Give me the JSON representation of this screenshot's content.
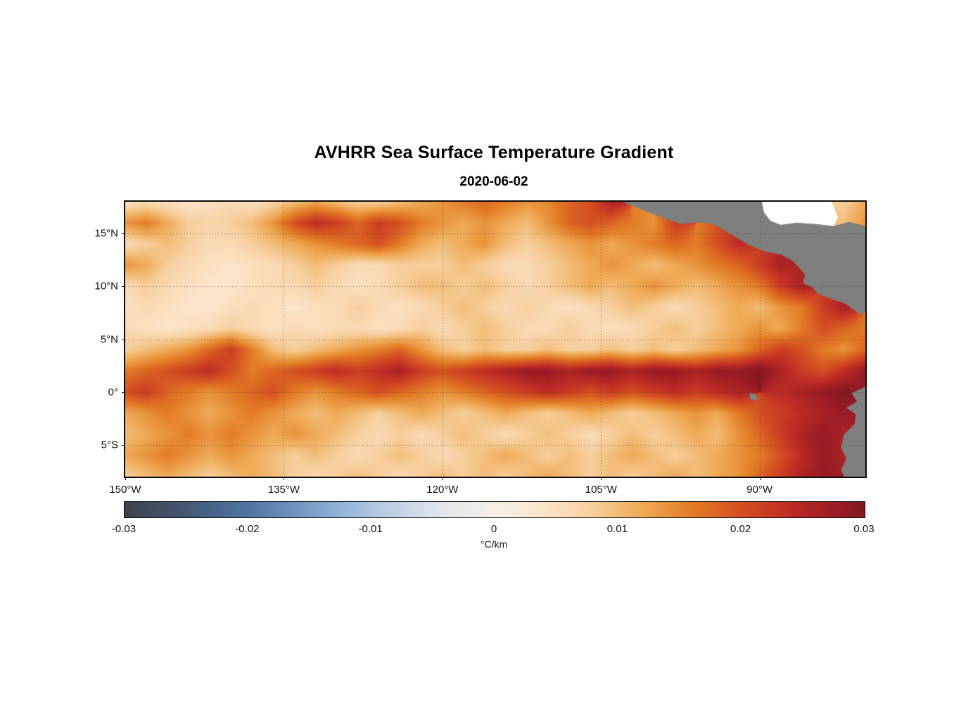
{
  "chart_data": {
    "type": "heatmap",
    "title": "AVHRR Sea Surface Temperature Gradient",
    "date": "2020-06-02",
    "units": "°C/km",
    "lon_range": [
      -150,
      -80
    ],
    "lat_range": [
      -8,
      18
    ],
    "grid_on": true,
    "gridline_style": "dotted",
    "x_ticks": [
      {
        "value": -150,
        "label": "150°W",
        "pos_pct": 0
      },
      {
        "value": -135,
        "label": "135°W",
        "pos_pct": 21.43
      },
      {
        "value": -120,
        "label": "120°W",
        "pos_pct": 42.86
      },
      {
        "value": -105,
        "label": "105°W",
        "pos_pct": 64.29
      },
      {
        "value": -90,
        "label": "90°W",
        "pos_pct": 85.71
      }
    ],
    "y_ticks": [
      {
        "value": 15,
        "label": "15°N",
        "pos_pct": 11.54
      },
      {
        "value": 10,
        "label": "10°N",
        "pos_pct": 30.77
      },
      {
        "value": 5,
        "label": "5°N",
        "pos_pct": 50.0
      },
      {
        "value": 0,
        "label": "0°",
        "pos_pct": 69.23
      },
      {
        "value": -5,
        "label": "5°S",
        "pos_pct": 88.46
      }
    ],
    "gridlines": {
      "lats": [
        15,
        10,
        5,
        0,
        -5
      ],
      "lons": [
        -135,
        -120,
        -105,
        -90
      ]
    },
    "colorbar": {
      "min": -0.03,
      "max": 0.03,
      "ticks": [
        "-0.03",
        "-0.02",
        "-0.01",
        "0",
        "0.01",
        "0.02",
        "0.03"
      ],
      "tick_values": [
        -0.03,
        -0.02,
        -0.01,
        0,
        0.01,
        0.02,
        0.03
      ],
      "tick_pos_pct": [
        0,
        16.67,
        33.33,
        50,
        66.67,
        83.33,
        100
      ],
      "label": "°C/km"
    },
    "colormap": [
      [
        -0.03,
        "#3d434e"
      ],
      [
        -0.026,
        "#42526b"
      ],
      [
        -0.02,
        "#4e74a4"
      ],
      [
        -0.014,
        "#84a7cf"
      ],
      [
        -0.01,
        "#aec6e0"
      ],
      [
        -0.005,
        "#dde4ed"
      ],
      [
        0.0,
        "#f6efe6"
      ],
      [
        0.004,
        "#fbe5cb"
      ],
      [
        0.008,
        "#f7cf9d"
      ],
      [
        0.012,
        "#efaa56"
      ],
      [
        0.016,
        "#e37c25"
      ],
      [
        0.02,
        "#d44f22"
      ],
      [
        0.024,
        "#bd2c24"
      ],
      [
        0.028,
        "#981a25"
      ],
      [
        0.03,
        "#841821"
      ]
    ],
    "land_color": "#7f7f7f",
    "nodata_color": "#ffffff",
    "grid": {
      "comment": "SST gradient magnitude estimated from the image on a 2-degree grid; values x 0.001 degC/km; -1 = land, -2 = no data (white)",
      "lon_start": -150,
      "lon_step": 2,
      "ncols": 36,
      "lat_start": 18,
      "lat_step": -2,
      "nrows": 14,
      "values_scale": 0.001,
      "land_value": -1,
      "nodata_value": -2,
      "values": [
        [
          5,
          6,
          5,
          4,
          5,
          6,
          5,
          7,
          10,
          12,
          10,
          8,
          8,
          10,
          12,
          14,
          16,
          18,
          16,
          14,
          15,
          18,
          20,
          26,
          -1,
          -1,
          -1,
          -1,
          -1,
          -1,
          -2,
          -2,
          -2,
          -2,
          8,
          12
        ],
        [
          14,
          16,
          12,
          8,
          7,
          8,
          10,
          14,
          20,
          24,
          22,
          18,
          22,
          20,
          16,
          14,
          12,
          14,
          12,
          10,
          14,
          18,
          20,
          18,
          16,
          14,
          22,
          -1,
          -1,
          -1,
          -1,
          -2,
          -2,
          -2,
          10,
          14
        ],
        [
          6,
          8,
          10,
          8,
          6,
          6,
          8,
          10,
          12,
          14,
          16,
          18,
          20,
          16,
          12,
          10,
          12,
          14,
          10,
          8,
          10,
          12,
          14,
          12,
          14,
          16,
          18,
          16,
          20,
          24,
          -1,
          -1,
          -1,
          -1,
          -1,
          -1
        ],
        [
          14,
          12,
          8,
          6,
          5,
          4,
          5,
          6,
          8,
          10,
          8,
          6,
          6,
          8,
          8,
          8,
          10,
          8,
          6,
          6,
          8,
          10,
          12,
          14,
          12,
          10,
          12,
          14,
          16,
          18,
          22,
          26,
          -1,
          -1,
          -1,
          -1
        ],
        [
          6,
          8,
          6,
          5,
          4,
          4,
          5,
          6,
          6,
          8,
          6,
          5,
          6,
          8,
          10,
          10,
          8,
          10,
          8,
          6,
          8,
          10,
          12,
          10,
          12,
          14,
          12,
          10,
          12,
          14,
          16,
          22,
          26,
          -1,
          -1,
          -1
        ],
        [
          5,
          6,
          5,
          4,
          4,
          5,
          6,
          5,
          4,
          5,
          6,
          8,
          6,
          5,
          6,
          8,
          10,
          8,
          6,
          8,
          6,
          5,
          6,
          8,
          10,
          8,
          6,
          8,
          10,
          12,
          10,
          14,
          16,
          22,
          26,
          -1
        ],
        [
          6,
          5,
          4,
          5,
          6,
          8,
          6,
          5,
          6,
          5,
          6,
          6,
          5,
          6,
          8,
          6,
          8,
          10,
          8,
          6,
          6,
          8,
          6,
          5,
          6,
          8,
          10,
          8,
          10,
          12,
          14,
          12,
          16,
          20,
          18,
          16
        ],
        [
          8,
          10,
          12,
          14,
          18,
          22,
          16,
          10,
          8,
          10,
          12,
          14,
          16,
          18,
          14,
          10,
          8,
          10,
          8,
          8,
          10,
          8,
          8,
          10,
          8,
          10,
          8,
          10,
          12,
          14,
          18,
          22,
          20,
          16,
          14,
          18
        ],
        [
          16,
          18,
          20,
          22,
          24,
          20,
          16,
          18,
          20,
          22,
          24,
          22,
          24,
          26,
          22,
          20,
          22,
          24,
          26,
          28,
          28,
          26,
          28,
          28,
          26,
          28,
          28,
          26,
          28,
          28,
          30,
          26,
          22,
          20,
          24,
          28
        ],
        [
          20,
          22,
          18,
          16,
          14,
          16,
          18,
          20,
          16,
          14,
          16,
          18,
          20,
          18,
          16,
          14,
          16,
          18,
          20,
          22,
          24,
          22,
          20,
          22,
          20,
          22,
          24,
          22,
          24,
          26,
          -1,
          24,
          26,
          28,
          30,
          -1
        ],
        [
          12,
          14,
          16,
          14,
          12,
          14,
          16,
          14,
          12,
          10,
          12,
          10,
          8,
          10,
          12,
          10,
          8,
          10,
          12,
          10,
          8,
          10,
          12,
          10,
          8,
          10,
          12,
          14,
          12,
          16,
          20,
          22,
          24,
          26,
          28,
          -1
        ],
        [
          10,
          12,
          14,
          16,
          14,
          16,
          14,
          12,
          14,
          12,
          10,
          8,
          6,
          8,
          6,
          8,
          10,
          8,
          6,
          8,
          10,
          8,
          6,
          8,
          10,
          8,
          10,
          12,
          10,
          14,
          18,
          22,
          26,
          28,
          26,
          -1
        ],
        [
          12,
          14,
          16,
          14,
          12,
          14,
          12,
          10,
          8,
          10,
          8,
          6,
          8,
          10,
          8,
          6,
          8,
          10,
          12,
          10,
          8,
          10,
          8,
          10,
          12,
          10,
          8,
          10,
          12,
          14,
          16,
          20,
          24,
          28,
          26,
          -1
        ],
        [
          8,
          10,
          12,
          10,
          8,
          10,
          12,
          10,
          8,
          6,
          8,
          10,
          8,
          6,
          8,
          10,
          8,
          10,
          8,
          10,
          12,
          10,
          8,
          10,
          8,
          10,
          12,
          10,
          12,
          14,
          18,
          22,
          26,
          28,
          -1,
          -1
        ]
      ]
    },
    "land_polygons": [
      {
        "name": "central-america",
        "points": [
          [
            -103,
            18
          ],
          [
            -101,
            17.2
          ],
          [
            -99.5,
            16.6
          ],
          [
            -97.5,
            15.9
          ],
          [
            -95.5,
            16.1
          ],
          [
            -94,
            15.7
          ],
          [
            -92.5,
            14.8
          ],
          [
            -91,
            13.9
          ],
          [
            -89.5,
            13.3
          ],
          [
            -88,
            13
          ],
          [
            -87,
            12.5
          ],
          [
            -86.3,
            11.8
          ],
          [
            -85.7,
            11.1
          ],
          [
            -85.9,
            10.3
          ],
          [
            -85,
            9.9
          ],
          [
            -84.5,
            9.3
          ],
          [
            -83.5,
            8.9
          ],
          [
            -82.6,
            8.6
          ],
          [
            -81.8,
            8.3
          ],
          [
            -81,
            7.7
          ],
          [
            -80.4,
            7.3
          ],
          [
            -80,
            7.6
          ],
          [
            -80,
            15.7
          ],
          [
            -81.5,
            16.1
          ],
          [
            -83,
            15.7
          ],
          [
            -85,
            15.9
          ],
          [
            -86.5,
            16
          ],
          [
            -88,
            15.8
          ],
          [
            -89,
            16.2
          ],
          [
            -89.6,
            17
          ],
          [
            -89.8,
            18
          ]
        ]
      },
      {
        "name": "south-america",
        "points": [
          [
            -80,
            0.5
          ],
          [
            -81.3,
            -0.1
          ],
          [
            -80.8,
            -0.9
          ],
          [
            -81.8,
            -1.5
          ],
          [
            -80.9,
            -2.1
          ],
          [
            -81,
            -3
          ],
          [
            -82,
            -4
          ],
          [
            -82.3,
            -5.2
          ],
          [
            -81.8,
            -6.3
          ],
          [
            -82.3,
            -7.4
          ],
          [
            -82,
            -8
          ],
          [
            -80,
            -8
          ]
        ]
      },
      {
        "name": "galapagos-islands",
        "points": [
          [
            -91,
            -0.1
          ],
          [
            -90.3,
            -0.2
          ],
          [
            -90.2,
            -0.8
          ],
          [
            -90.9,
            -0.7
          ]
        ]
      }
    ],
    "nodata_polygons": [
      {
        "name": "caribbean-no-data",
        "points": [
          [
            -89.8,
            18
          ],
          [
            -89.6,
            17
          ],
          [
            -89,
            16.2
          ],
          [
            -88,
            15.8
          ],
          [
            -86.5,
            16
          ],
          [
            -85,
            15.9
          ],
          [
            -83,
            15.7
          ],
          [
            -82.6,
            16.5
          ],
          [
            -82.9,
            17.3
          ],
          [
            -83.2,
            18
          ]
        ]
      }
    ]
  }
}
